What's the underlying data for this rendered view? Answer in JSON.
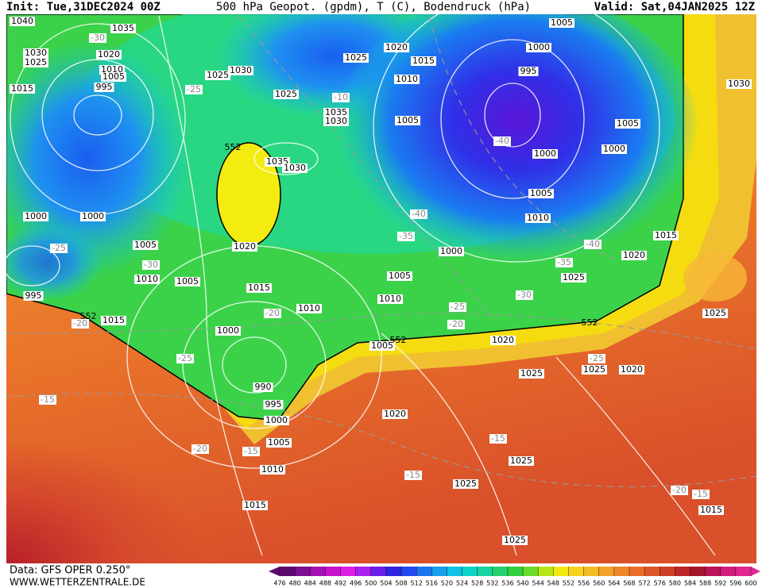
{
  "header": {
    "init": "Init: Tue,31DEC2024 00Z",
    "title": "500 hPa Geopot. (gpdm), T (C), Bodendruck (hPa)",
    "valid": "Valid: Sat,04JAN2025 12Z"
  },
  "footer": {
    "source": "Data: GFS OPER 0.250°",
    "site": "WWW.WETTERZENTRALE.DE"
  },
  "isobar_labels": [
    1040,
    1035,
    1030,
    1025,
    1020,
    1010,
    1005,
    995,
    1015,
    1025,
    1030,
    1025,
    1035,
    1030,
    1025,
    1020,
    1015,
    1010,
    1005,
    1000,
    995,
    1030,
    1005,
    1005,
    1000,
    1000,
    1035,
    1030,
    1005,
    1010,
    1000,
    1000,
    1015,
    1000,
    1020,
    1005,
    1020,
    1010,
    1005,
    1005,
    1025,
    995,
    1015,
    1010,
    1010,
    1015,
    1025,
    1000,
    1005,
    1020,
    1025,
    1020,
    1025,
    990,
    995,
    1020,
    1000,
    1005,
    1025,
    1010,
    1025,
    1015,
    1015,
    1025
  ],
  "temperature_labels": [
    -30,
    -25,
    -10,
    -40,
    -40,
    -35,
    -40,
    -25,
    -30,
    -35,
    -30,
    -20,
    -20,
    -25,
    -20,
    -25,
    -25,
    -15,
    -15,
    -20,
    -15,
    -15,
    -20,
    -15
  ],
  "height_labels": [
    552,
    552,
    552,
    552
  ],
  "colorbar": {
    "ticks": [
      476,
      480,
      484,
      488,
      492,
      496,
      500,
      504,
      508,
      512,
      516,
      520,
      524,
      528,
      532,
      536,
      540,
      544,
      548,
      552,
      556,
      560,
      564,
      568,
      572,
      576,
      580,
      584,
      588,
      592,
      596,
      600
    ]
  }
}
